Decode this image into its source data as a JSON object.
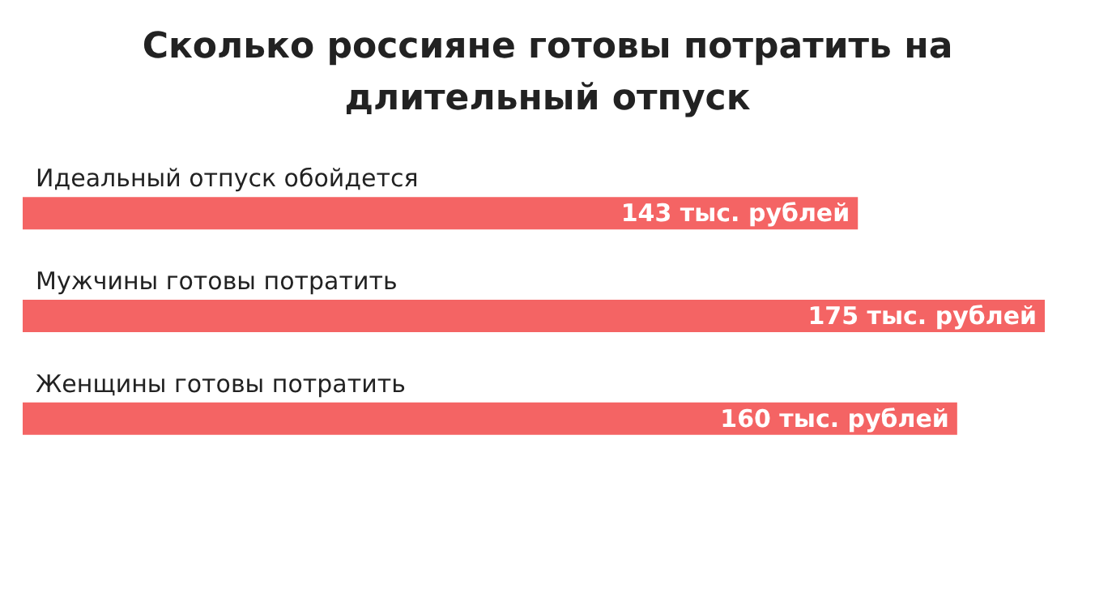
{
  "chart_data": {
    "type": "bar",
    "orientation": "horizontal",
    "title": "Сколько россияне готовы потратить на\nдлительный отпуск",
    "categories": [
      "Идеальный отпуск обойдется",
      "Мужчины готовы потратить",
      "Женщины готовы потратить"
    ],
    "values": [
      143,
      175,
      160
    ],
    "value_labels": [
      "143 тыс. рублей",
      "175 тыс. рублей",
      "160 тыс. рублей"
    ],
    "color": "#f46464"
  }
}
